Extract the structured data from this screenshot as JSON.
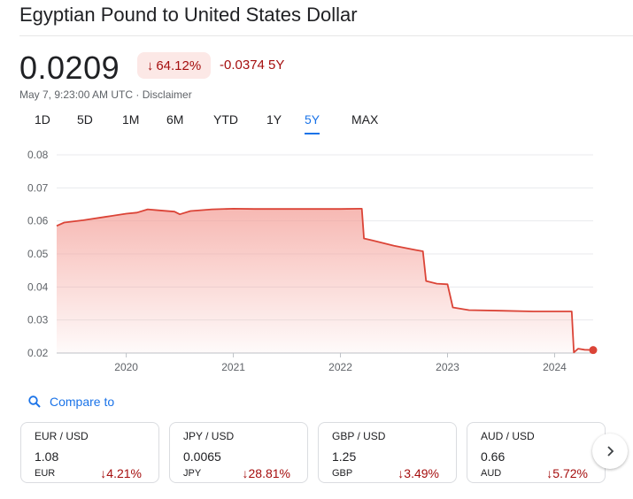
{
  "header": {
    "title": "Egyptian Pound to United States Dollar",
    "price": "0.0209",
    "pct_arrow": "↓",
    "pct_change": "64.12%",
    "abs_change": "-0.0374 5Y",
    "meta": "May 7, 9:23:00 AM UTC · Disclaimer"
  },
  "tabs": [
    {
      "label": "1D"
    },
    {
      "label": "5D"
    },
    {
      "label": "1M"
    },
    {
      "label": "6M"
    },
    {
      "label": "YTD"
    },
    {
      "label": "1Y"
    },
    {
      "label": "5Y",
      "active": true
    },
    {
      "label": "MAX"
    }
  ],
  "colors": {
    "line": "#db4437",
    "fill_top": "#f4a19a",
    "negative": "#a50e0e",
    "accent": "#1a73e8"
  },
  "chart_data": {
    "type": "area",
    "y_ticks": [
      "0.08",
      "0.07",
      "0.06",
      "0.05",
      "0.04",
      "0.03",
      "0.02"
    ],
    "ylim": [
      0.02,
      0.08
    ],
    "x_ticks": [
      "2020",
      "2021",
      "2022",
      "2023",
      "2024"
    ],
    "xlim": [
      2019.35,
      2024.36
    ],
    "grid": true,
    "series": [
      {
        "x": [
          2019.35,
          2019.42,
          2019.6,
          2019.8,
          2020.0,
          2020.1,
          2020.2,
          2020.3,
          2020.45,
          2020.5,
          2020.6,
          2020.8,
          2021.0,
          2021.2,
          2021.5,
          2021.8,
          2022.0,
          2022.18,
          2022.2,
          2022.22,
          2022.3,
          2022.5,
          2022.7,
          2022.77,
          2022.8,
          2022.9,
          2023.0,
          2023.05,
          2023.2,
          2023.5,
          2023.8,
          2024.0,
          2024.16,
          2024.18,
          2024.22,
          2024.28,
          2024.36
        ],
        "y": [
          0.0585,
          0.0595,
          0.0602,
          0.0612,
          0.0622,
          0.0625,
          0.0635,
          0.0632,
          0.0628,
          0.062,
          0.063,
          0.0635,
          0.0637,
          0.0636,
          0.0636,
          0.0636,
          0.0636,
          0.0637,
          0.0637,
          0.0547,
          0.0541,
          0.0525,
          0.0512,
          0.0508,
          0.0418,
          0.041,
          0.0408,
          0.0338,
          0.033,
          0.0328,
          0.0326,
          0.0326,
          0.0326,
          0.0202,
          0.0213,
          0.021,
          0.0209
        ]
      }
    ]
  },
  "compare": {
    "label": "Compare to"
  },
  "cards": [
    {
      "pair": "EUR / USD",
      "value": "1.08",
      "currency": "EUR",
      "change": "↓4.21%"
    },
    {
      "pair": "JPY / USD",
      "value": "0.0065",
      "currency": "JPY",
      "change": "↓28.81%"
    },
    {
      "pair": "GBP / USD",
      "value": "1.25",
      "currency": "GBP",
      "change": "↓3.49%"
    },
    {
      "pair": "AUD / USD",
      "value": "0.66",
      "currency": "AUD",
      "change": "↓5.72%"
    }
  ]
}
